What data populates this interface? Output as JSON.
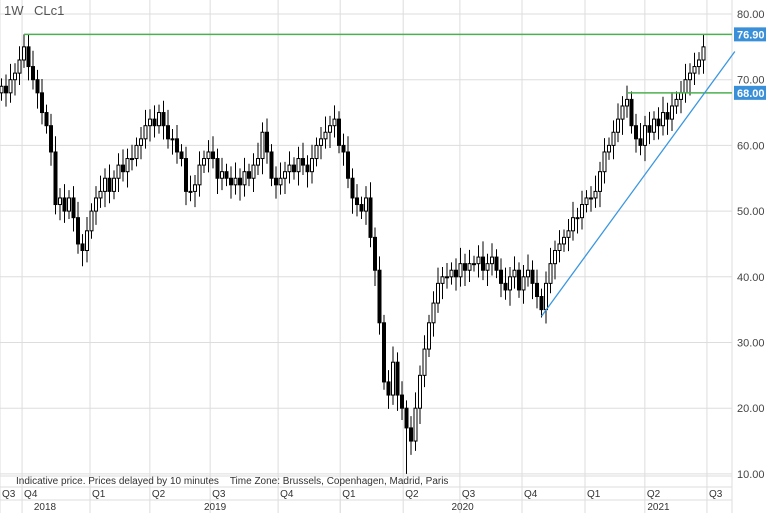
{
  "header": {
    "interval": "1W",
    "symbol": "CLc1"
  },
  "footer_note": "Indicative price. Prices delayed by 10 minutes    Time Zone: Brussels, Copenhagen, Madrid, Paris",
  "colors": {
    "grid": "#dddddd",
    "hline": "#4caf50",
    "trend": "#3a97e0",
    "label_bg": "#3a8fd9",
    "candle": "#000000"
  },
  "chart_data": {
    "type": "candlestick",
    "title": "CLc1",
    "interval": "1W",
    "ylim": [
      10,
      80
    ],
    "yticks": [
      "10.00",
      "20.00",
      "30.00",
      "40.00",
      "50.00",
      "60.00",
      "70.00",
      "80.00"
    ],
    "x_unit": "week index from Q3 2018",
    "close": [
      69,
      68,
      70,
      71,
      73,
      75,
      72,
      70,
      68,
      65,
      63,
      59,
      51,
      52,
      50,
      52,
      49,
      45,
      44,
      47,
      50,
      52,
      53,
      55,
      53,
      55,
      57,
      56,
      58,
      58,
      60,
      61,
      63,
      64,
      63,
      65,
      63,
      61,
      61,
      59,
      58,
      53,
      53,
      54,
      57,
      58,
      59,
      58,
      55,
      56,
      55,
      54,
      55,
      54,
      56,
      55,
      57,
      58,
      62,
      59,
      55,
      54,
      55,
      56,
      57,
      56,
      58,
      57,
      56,
      58,
      60,
      61,
      62,
      63,
      64,
      60,
      59,
      55,
      52,
      51,
      50,
      52,
      46,
      41,
      33,
      24,
      22,
      27,
      22,
      20,
      17,
      15,
      20,
      25,
      29,
      33,
      36,
      39,
      40,
      40,
      41,
      40,
      42,
      41,
      42,
      42,
      43,
      41,
      42,
      43,
      41,
      39,
      38,
      40,
      41,
      38,
      40,
      41,
      39,
      37,
      35,
      39,
      42,
      44,
      45,
      46,
      47,
      49,
      49,
      51,
      52,
      52,
      53,
      56,
      59,
      60,
      62,
      64,
      66,
      67,
      63,
      61,
      60,
      63,
      62,
      64,
      63,
      65,
      64,
      66,
      67,
      68,
      70,
      71,
      72,
      73,
      75
    ],
    "extremes": {
      "high": {
        "week": 5,
        "value": 76.9
      },
      "low": {
        "week": 90,
        "value": 10.0
      }
    },
    "horizontal_lines": [
      {
        "value": 76.9,
        "label": "76.90",
        "from_week": 5
      },
      {
        "value": 68.0,
        "label": "68.00",
        "from_week": 139
      }
    ],
    "trendline": {
      "from": {
        "week": 120,
        "value": 34.0
      },
      "to": {
        "week": 163.3,
        "value": 74.3
      }
    },
    "quarters": [
      {
        "label": "Q3",
        "week": 0
      },
      {
        "label": "Q4",
        "week": 4.9
      },
      {
        "label": "Q1",
        "week": 20
      },
      {
        "label": "Q2",
        "week": 33.3
      },
      {
        "label": "Q3",
        "week": 46.7
      },
      {
        "label": "Q4",
        "week": 61.8
      },
      {
        "label": "Q1",
        "week": 75.6
      },
      {
        "label": "Q2",
        "week": 89.6
      },
      {
        "label": "Q3",
        "week": 102.2
      },
      {
        "label": "Q4",
        "week": 116
      },
      {
        "label": "Q1",
        "week": 130
      },
      {
        "label": "Q2",
        "week": 143.3
      },
      {
        "label": "Q3",
        "week": 157.1
      }
    ],
    "years": [
      {
        "label": "2018",
        "from": 0,
        "to": 20
      },
      {
        "label": "2019",
        "from": 20,
        "to": 75.6
      },
      {
        "label": "2020",
        "from": 75.6,
        "to": 130
      },
      {
        "label": "2021",
        "from": 130,
        "to": 162.7
      }
    ]
  }
}
